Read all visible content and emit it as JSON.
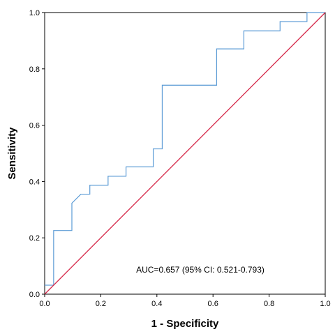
{
  "chart_data": {
    "type": "line",
    "title": "",
    "xlabel": "1 - Specificity",
    "ylabel": "Sensitivity",
    "xlim": [
      0,
      1
    ],
    "ylim": [
      0,
      1
    ],
    "xticks": [
      "0.0",
      "0.2",
      "0.4",
      "0.6",
      "0.8",
      "1.0"
    ],
    "yticks": [
      "0.0",
      "0.2",
      "0.4",
      "0.6",
      "0.8",
      "1.0"
    ],
    "grid": false,
    "legend": "none",
    "annotation": "AUC=0.657 (95% CI: 0.521-0.793)",
    "series": [
      {
        "type": "roc",
        "color": "#5b9bd5",
        "x": [
          0.0,
          0.032,
          0.032,
          0.097,
          0.097,
          0.129,
          0.129,
          0.161,
          0.161,
          0.226,
          0.226,
          0.29,
          0.29,
          0.387,
          0.387,
          0.419,
          0.419,
          0.613,
          0.613,
          0.71,
          0.71,
          0.839,
          0.839,
          0.935,
          0.935,
          1.0
        ],
        "y": [
          0.032,
          0.032,
          0.226,
          0.226,
          0.323,
          0.355,
          0.355,
          0.355,
          0.387,
          0.387,
          0.419,
          0.419,
          0.452,
          0.452,
          0.516,
          0.516,
          0.742,
          0.742,
          0.871,
          0.871,
          0.935,
          0.935,
          0.968,
          0.968,
          1.0,
          1.0
        ]
      },
      {
        "type": "reference",
        "color": "#d6294a",
        "x": [
          0,
          1
        ],
        "y": [
          0,
          1
        ]
      }
    ],
    "colors": {
      "axis": "#000000",
      "roc": "#5b9bd5",
      "reference": "#d6294a"
    }
  }
}
